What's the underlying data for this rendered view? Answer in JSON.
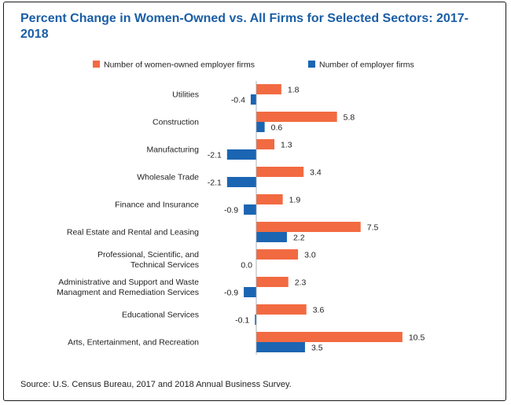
{
  "chart_data": {
    "type": "bar",
    "orientation": "horizontal",
    "title": "Percent Change in Women-Owned vs. All Firms for Selected Sectors: 2017-2018",
    "xlabel": "",
    "ylabel": "",
    "grid": false,
    "legend_position": "top",
    "categories": [
      [
        "Utilities"
      ],
      [
        "Construction"
      ],
      [
        "Manufacturing"
      ],
      [
        "Wholesale Trade"
      ],
      [
        "Finance and Insurance"
      ],
      [
        "Real Estate and Rental and Leasing"
      ],
      [
        "Professional, Scientific, and",
        "Technical Services"
      ],
      [
        "Administrative and Support and Waste",
        "Managment and Remediation Services"
      ],
      [
        "Educational Services"
      ],
      [
        "Arts, Entertainment, and Recreation"
      ]
    ],
    "series": [
      {
        "name": "Number of women-owned employer firms",
        "color": "#f26a41",
        "values": [
          1.8,
          5.8,
          1.3,
          3.4,
          1.9,
          7.5,
          3.0,
          2.3,
          3.6,
          10.5
        ],
        "labels": [
          "1.8",
          "5.8",
          "1.3",
          "3.4",
          "1.9",
          "7.5",
          "3.0",
          "2.3",
          "3.6",
          "10.5"
        ]
      },
      {
        "name": "Number of employer firms",
        "color": "#1b65b3",
        "values": [
          -0.4,
          0.6,
          -2.1,
          -2.1,
          -0.9,
          2.2,
          0.0,
          -0.9,
          -0.1,
          3.5
        ],
        "labels": [
          "-0.4",
          "0.6",
          "-2.1",
          "-2.1",
          "-0.9",
          "2.2",
          "0.0",
          "-0.9",
          "-0.1",
          "3.5"
        ]
      }
    ],
    "source": "Source: U.S. Census Bureau, 2017 and 2018 Annual Business Survey."
  }
}
